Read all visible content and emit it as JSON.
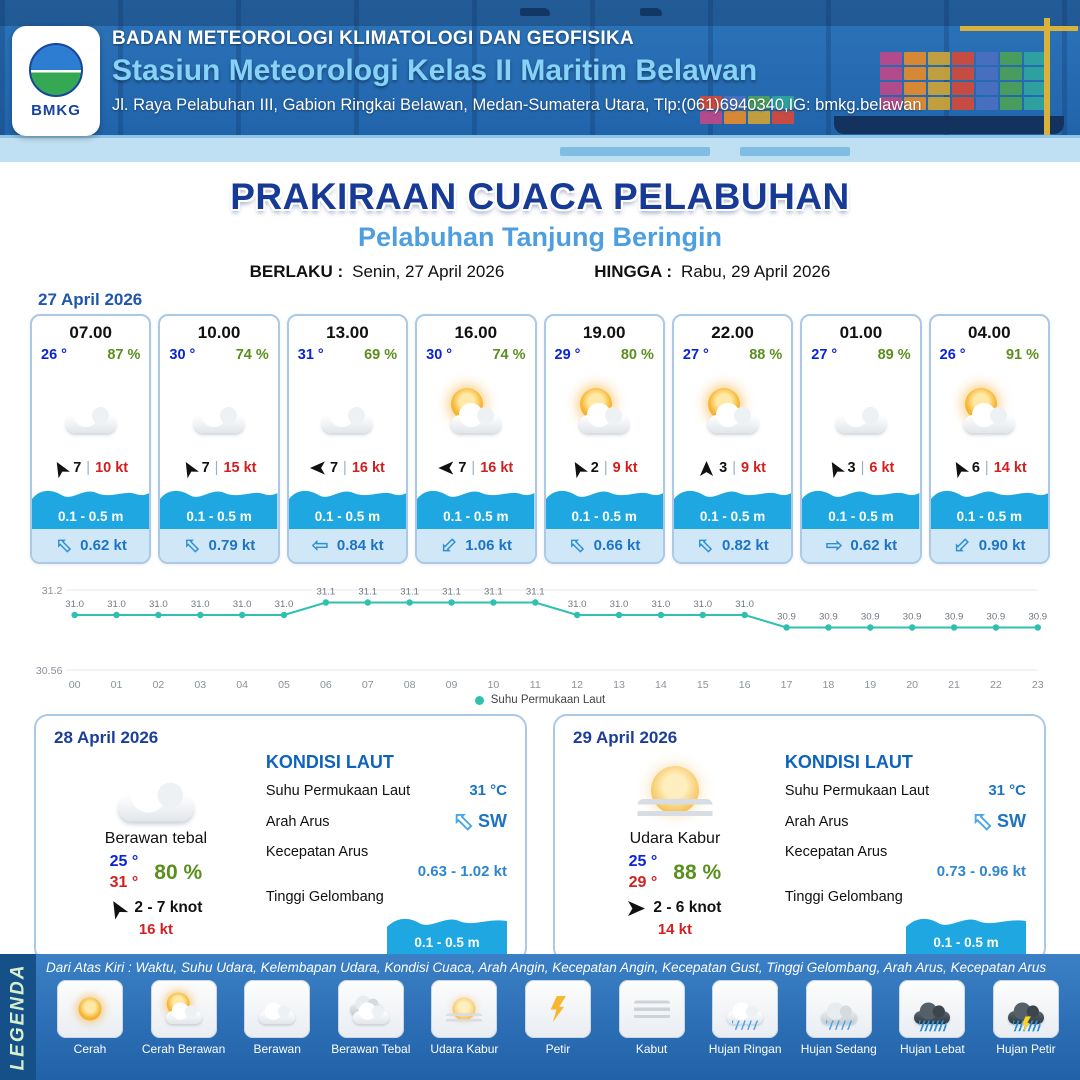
{
  "ui": {
    "divider": "|",
    "arrow_glyph": "⇦"
  },
  "colors": {
    "header_blue": "#2367ae",
    "title_blue": "#173a96",
    "subtitle_blue": "#4e9fe0",
    "wave_blue": "#1ea7e0",
    "temp_blue": "#0a23d8",
    "humidity_green": "#5a8f1e",
    "alert_red": "#d21f1f",
    "current_blue": "#1d74c4",
    "chart_teal": "#2fc0b0"
  },
  "header": {
    "logo_text": "BMKG",
    "agency": "BADAN METEOROLOGI KLIMATOLOGI DAN GEOFISIKA",
    "station": "Stasiun Meteorologi Kelas II Maritim Belawan",
    "address": "Jl. Raya Pelabuhan III, Gabion Ringkai Belawan, Medan-Sumatera Utara, Tlp:(061)6940340,IG: bmkg.belawan"
  },
  "title": {
    "main": "PRAKIRAAN CUACA PELABUHAN",
    "subtitle": "Pelabuhan Tanjung Beringin",
    "valid_from_label": "BERLAKU :",
    "valid_from": "Senin, 27 April 2026",
    "valid_to_label": "HINGGA :",
    "valid_to": "Rabu, 29 April 2026"
  },
  "forecast_date": "27 April 2026",
  "hourly": [
    {
      "time": "07.00",
      "temp": "26 °",
      "humidity": "87 %",
      "icon": "berawan",
      "wind_deg": 60,
      "wind": "7",
      "gust": "10 kt",
      "wave": "0.1 - 0.5 m",
      "current_deg": 45,
      "current": "0.62 kt"
    },
    {
      "time": "10.00",
      "temp": "30 °",
      "humidity": "74 %",
      "icon": "berawan",
      "wind_deg": 60,
      "wind": "7",
      "gust": "15 kt",
      "wave": "0.1 - 0.5 m",
      "current_deg": 45,
      "current": "0.79 kt"
    },
    {
      "time": "13.00",
      "temp": "31 °",
      "humidity": "69 %",
      "icon": "berawan",
      "wind_deg": 0,
      "wind": "7",
      "gust": "16 kt",
      "wave": "0.1 - 0.5 m",
      "current_deg": 0,
      "current": "0.84 kt"
    },
    {
      "time": "16.00",
      "temp": "30 °",
      "humidity": "74 %",
      "icon": "cerah-berawan",
      "wind_deg": 0,
      "wind": "7",
      "gust": "16 kt",
      "wave": "0.1 - 0.5 m",
      "current_deg": -45,
      "current": "1.06 kt"
    },
    {
      "time": "19.00",
      "temp": "29 °",
      "humidity": "80 %",
      "icon": "cerah-berawan",
      "wind_deg": 60,
      "wind": "2",
      "gust": "9 kt",
      "wave": "0.1 - 0.5 m",
      "current_deg": 45,
      "current": "0.66 kt"
    },
    {
      "time": "22.00",
      "temp": "27 °",
      "humidity": "88 %",
      "icon": "cerah-berawan",
      "wind_deg": 90,
      "wind": "3",
      "gust": "9 kt",
      "wave": "0.1 - 0.5 m",
      "current_deg": 45,
      "current": "0.82 kt"
    },
    {
      "time": "01.00",
      "temp": "27 °",
      "humidity": "89 %",
      "icon": "berawan",
      "wind_deg": 60,
      "wind": "3",
      "gust": "6 kt",
      "wave": "0.1 - 0.5 m",
      "current_deg": 180,
      "current": "0.62 kt"
    },
    {
      "time": "04.00",
      "temp": "26 °",
      "humidity": "91 %",
      "icon": "cerah-berawan",
      "wind_deg": 60,
      "wind": "6",
      "gust": "14 kt",
      "wave": "0.1 - 0.5 m",
      "current_deg": -45,
      "current": "0.90 kt"
    }
  ],
  "chart_data": {
    "type": "line",
    "series_name": "Suhu Permukaan Laut",
    "x": [
      "00",
      "01",
      "02",
      "03",
      "04",
      "05",
      "06",
      "07",
      "08",
      "09",
      "10",
      "11",
      "12",
      "13",
      "14",
      "15",
      "16",
      "17",
      "18",
      "19",
      "20",
      "21",
      "22",
      "23"
    ],
    "values": [
      31.0,
      31.0,
      31.0,
      31.0,
      31.0,
      31.0,
      31.1,
      31.1,
      31.1,
      31.1,
      31.1,
      31.1,
      31.0,
      31.0,
      31.0,
      31.0,
      31.0,
      30.9,
      30.9,
      30.9,
      30.9,
      30.9,
      30.9,
      30.9
    ],
    "ylim": [
      30.56,
      31.2
    ],
    "yticks": [
      "31.2",
      "30.56"
    ],
    "line_color": "#2fc0b0",
    "grid": true,
    "legend_position": "bottom"
  },
  "sea_labels": {
    "title": "KONDISI LAUT",
    "sst": "Suhu Permukaan Laut",
    "dir": "Arah Arus",
    "speed": "Kecepatan Arus",
    "wave": "Tinggi Gelombang"
  },
  "outlook": [
    {
      "date": "28 April 2026",
      "icon": "berawan",
      "condition": "Berawan tebal",
      "temp_min": "25 °",
      "temp_max": "31 °",
      "humidity": "80 %",
      "wind_deg": 60,
      "wind": "2  - 7 knot",
      "gust": "16 kt",
      "sst": "31 °C",
      "current_dir": "SW",
      "current_dir_deg": 45,
      "current_speed": "0.63  - 1.02 kt",
      "wave": "0.1 - 0.5 m"
    },
    {
      "date": "29 April 2026",
      "icon": "udara-kabur",
      "condition": "Udara Kabur",
      "temp_min": "25 °",
      "temp_max": "29 °",
      "humidity": "88 %",
      "wind_deg": 180,
      "wind": "2  - 6 knot",
      "gust": "14 kt",
      "sst": "31 °C",
      "current_dir": "SW",
      "current_dir_deg": 45,
      "current_speed": "0.73  - 0.96 kt",
      "wave": "0.1 - 0.5 m"
    }
  ],
  "legend": {
    "title": "LEGENDA",
    "note": "Dari Atas Kiri : Waktu, Suhu Udara, Kelembapan Udara, Kondisi Cuaca, Arah Angin, Kecepatan Angin, Kecepatan Gust, Tinggi Gelombang, Arah Arus, Kecepatan Arus",
    "items": [
      {
        "label": "Cerah",
        "icon": "cerah"
      },
      {
        "label": "Cerah Berawan",
        "icon": "cerah-berawan"
      },
      {
        "label": "Berawan",
        "icon": "berawan"
      },
      {
        "label": "Berawan Tebal",
        "icon": "berawan-tebal"
      },
      {
        "label": "Udara Kabur",
        "icon": "udara-kabur"
      },
      {
        "label": "Petir",
        "icon": "petir"
      },
      {
        "label": "Kabut",
        "icon": "kabut"
      },
      {
        "label": "Hujan Ringan",
        "icon": "hujan-ringan"
      },
      {
        "label": "Hujan Sedang",
        "icon": "hujan-sedang"
      },
      {
        "label": "Hujan Lebat",
        "icon": "hujan-lebat"
      },
      {
        "label": "Hujan Petir",
        "icon": "hujan-petir"
      }
    ]
  }
}
